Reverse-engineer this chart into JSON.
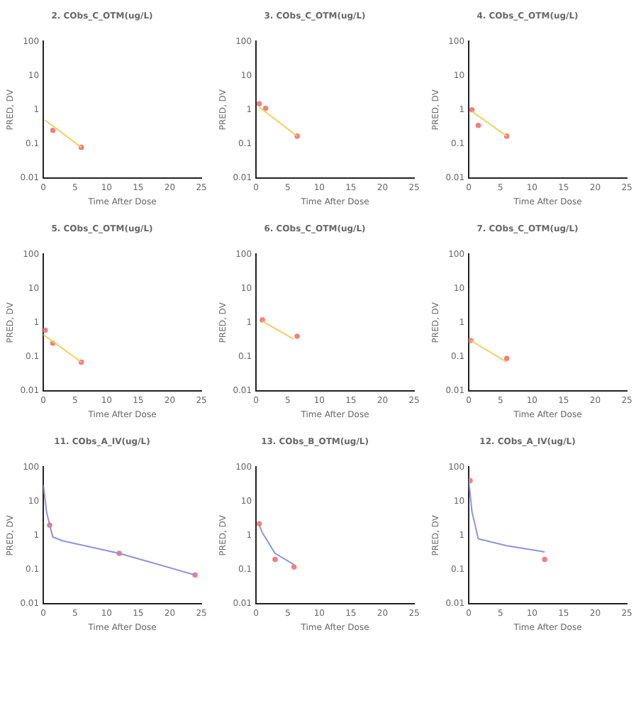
{
  "chart_data": [
    {
      "type": "line",
      "title": "2. CObs_C_OTM(ug/L)",
      "xlabel": "Time After Dose",
      "ylabel": "PRED, DV",
      "log": true,
      "grid": false,
      "legend": false,
      "xlim": [
        0,
        25
      ],
      "xticks": [
        0,
        5,
        10,
        15,
        20,
        25
      ],
      "ylim": [
        0.01,
        100
      ],
      "yticks": [
        0.01,
        0.1,
        1,
        10,
        100
      ],
      "series": [
        {
          "type": "line",
          "color": "#f0d060",
          "x": [
            0.25,
            6
          ],
          "values": [
            0.5,
            0.08
          ]
        },
        {
          "type": "scatter",
          "marker": "circle",
          "color": "#f08080",
          "x": [
            1.5,
            6
          ],
          "values": [
            0.25,
            0.08
          ]
        }
      ]
    },
    {
      "type": "line",
      "title": "3. CObs_C_OTM(ug/L)",
      "xlabel": "Time After Dose",
      "ylabel": "PRED, DV",
      "log": true,
      "grid": false,
      "legend": false,
      "xlim": [
        0,
        25
      ],
      "xticks": [
        0,
        5,
        10,
        15,
        20,
        25
      ],
      "ylim": [
        0.01,
        100
      ],
      "yticks": [
        0.01,
        0.1,
        1,
        10,
        100
      ],
      "series": [
        {
          "type": "line",
          "color": "#f0d060",
          "x": [
            0.5,
            6.5
          ],
          "values": [
            1.2,
            0.17
          ]
        },
        {
          "type": "scatter",
          "marker": "circle",
          "color": "#f08080",
          "x": [
            0.5,
            1.5,
            6.5
          ],
          "values": [
            1.5,
            1.1,
            0.17
          ]
        }
      ]
    },
    {
      "type": "line",
      "title": "4. CObs_C_OTM(ug/L)",
      "xlabel": "Time After Dose",
      "ylabel": "PRED, DV",
      "log": true,
      "grid": false,
      "legend": false,
      "xlim": [
        0,
        25
      ],
      "xticks": [
        0,
        5,
        10,
        15,
        20,
        25
      ],
      "ylim": [
        0.01,
        100
      ],
      "yticks": [
        0.01,
        0.1,
        1,
        10,
        100
      ],
      "series": [
        {
          "type": "line",
          "color": "#f0d060",
          "x": [
            0.5,
            6
          ],
          "values": [
            0.9,
            0.17
          ]
        },
        {
          "type": "scatter",
          "marker": "circle",
          "color": "#f08080",
          "x": [
            0.5,
            1.5,
            6
          ],
          "values": [
            1,
            0.35,
            0.17
          ]
        }
      ]
    },
    {
      "type": "line",
      "title": "5. CObs_C_OTM(ug/L)",
      "xlabel": "Time After Dose",
      "ylabel": "PRED, DV",
      "log": true,
      "grid": false,
      "legend": false,
      "xlim": [
        0,
        25
      ],
      "xticks": [
        0,
        5,
        10,
        15,
        20,
        25
      ],
      "ylim": [
        0.01,
        100
      ],
      "yticks": [
        0.01,
        0.1,
        1,
        10,
        100
      ],
      "series": [
        {
          "type": "line",
          "color": "#f0d060",
          "x": [
            0,
            6
          ],
          "values": [
            0.45,
            0.07
          ]
        },
        {
          "type": "scatter",
          "marker": "circle",
          "color": "#f08080",
          "x": [
            0.3,
            1.5,
            6
          ],
          "values": [
            0.6,
            0.25,
            0.07
          ]
        }
      ]
    },
    {
      "type": "line",
      "title": "6. CObs_C_OTM(ug/L)",
      "xlabel": "Time After Dose",
      "ylabel": "PRED, DV",
      "log": true,
      "grid": false,
      "legend": false,
      "xlim": [
        0,
        25
      ],
      "xticks": [
        0,
        5,
        10,
        15,
        20,
        25
      ],
      "ylim": [
        0.01,
        100
      ],
      "yticks": [
        0.01,
        0.1,
        1,
        10,
        100
      ],
      "series": [
        {
          "type": "line",
          "color": "#f0d060",
          "x": [
            1,
            6
          ],
          "values": [
            1.1,
            0.33
          ]
        },
        {
          "type": "scatter",
          "marker": "circle",
          "color": "#f08080",
          "x": [
            1,
            6.5
          ],
          "values": [
            1.2,
            0.4
          ]
        }
      ]
    },
    {
      "type": "line",
      "title": "7. CObs_C_OTM(ug/L)",
      "xlabel": "Time After Dose",
      "ylabel": "PRED, DV",
      "log": true,
      "grid": false,
      "legend": false,
      "xlim": [
        0,
        25
      ],
      "xticks": [
        0,
        5,
        10,
        15,
        20,
        25
      ],
      "ylim": [
        0.01,
        100
      ],
      "yticks": [
        0.01,
        0.1,
        1,
        10,
        100
      ],
      "series": [
        {
          "type": "line",
          "color": "#f0d060",
          "x": [
            0.3,
            6
          ],
          "values": [
            0.3,
            0.07
          ]
        },
        {
          "type": "scatter",
          "marker": "circle",
          "color": "#f08080",
          "x": [
            0.3,
            6
          ],
          "values": [
            0.3,
            0.09
          ]
        }
      ]
    },
    {
      "type": "line",
      "title": "11. CObs_A_IV(ug/L)",
      "xlabel": "Time After Dose",
      "ylabel": "PRED, DV",
      "log": true,
      "grid": false,
      "legend": false,
      "xlim": [
        0,
        25
      ],
      "xticks": [
        0,
        5,
        10,
        15,
        20,
        25
      ],
      "ylim": [
        0.01,
        100
      ],
      "yticks": [
        0.01,
        0.1,
        1,
        10,
        100
      ],
      "series": [
        {
          "type": "line",
          "color": "#9090e0",
          "x": [
            0,
            0.5,
            1,
            1.5,
            3,
            12,
            24
          ],
          "values": [
            30,
            5,
            2,
            0.9,
            0.7,
            0.3,
            0.07
          ]
        },
        {
          "type": "scatter",
          "marker": "circle",
          "color": "#f08080",
          "x": [
            1,
            12,
            24
          ],
          "values": [
            2,
            0.3,
            0.07
          ]
        }
      ]
    },
    {
      "type": "line",
      "title": "13. CObs_B_OTM(ug/L)",
      "xlabel": "Time After Dose",
      "ylabel": "PRED, DV",
      "log": true,
      "grid": false,
      "legend": false,
      "xlim": [
        0,
        25
      ],
      "xticks": [
        0,
        5,
        10,
        15,
        20,
        25
      ],
      "ylim": [
        0.01,
        100
      ],
      "yticks": [
        0.01,
        0.1,
        1,
        10,
        100
      ],
      "series": [
        {
          "type": "line",
          "color": "#9090e0",
          "x": [
            0.5,
            1,
            3,
            6
          ],
          "values": [
            2,
            1.2,
            0.3,
            0.14
          ]
        },
        {
          "type": "scatter",
          "marker": "circle",
          "color": "#f08080",
          "x": [
            0.5,
            3,
            6
          ],
          "values": [
            2.2,
            0.2,
            0.12
          ]
        }
      ]
    },
    {
      "type": "line",
      "title": "12. CObs_A_IV(ug/L)",
      "xlabel": "Time After Dose",
      "ylabel": "PRED, DV",
      "log": true,
      "grid": false,
      "legend": false,
      "xlim": [
        0,
        25
      ],
      "xticks": [
        0,
        5,
        10,
        15,
        20,
        25
      ],
      "ylim": [
        0.01,
        100
      ],
      "yticks": [
        0.01,
        0.1,
        1,
        10,
        100
      ],
      "series": [
        {
          "type": "line",
          "color": "#9090e0",
          "x": [
            0,
            0.5,
            1.5,
            6,
            12
          ],
          "values": [
            40,
            5,
            0.8,
            0.5,
            0.33
          ]
        },
        {
          "type": "scatter",
          "marker": "circle",
          "color": "#f08080",
          "x": [
            0.2,
            12
          ],
          "values": [
            40,
            0.2
          ]
        }
      ]
    }
  ]
}
